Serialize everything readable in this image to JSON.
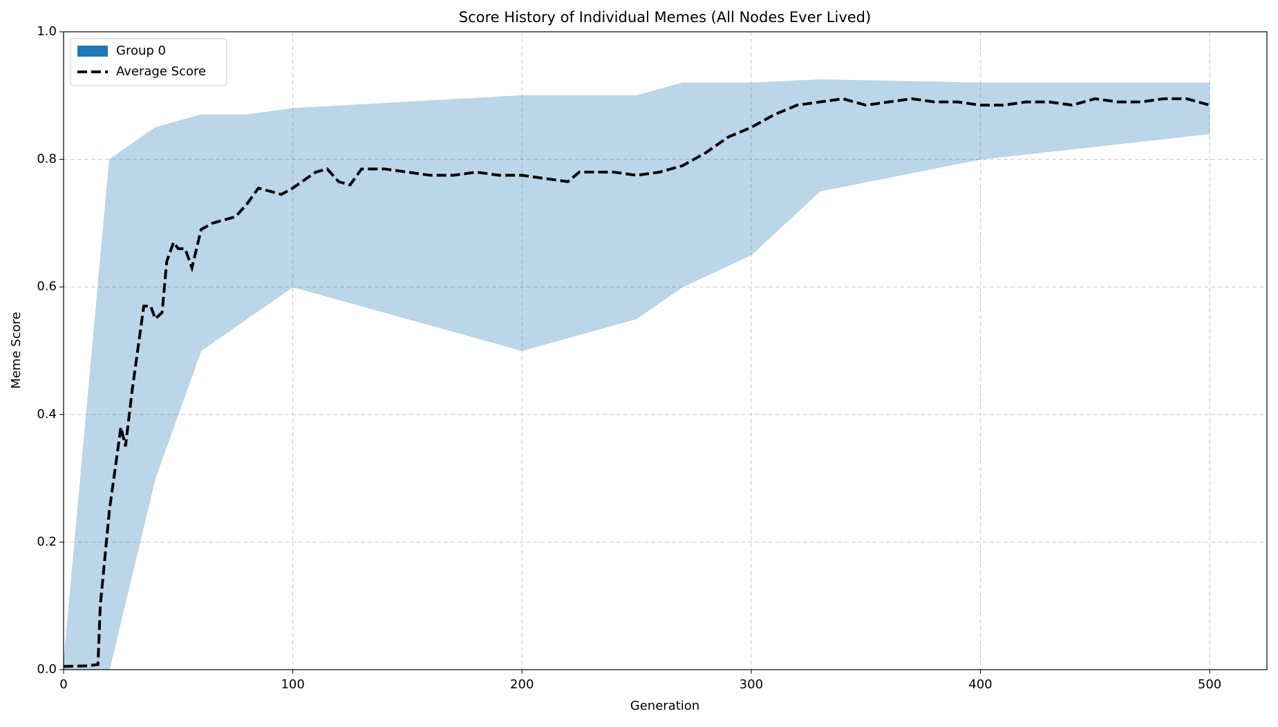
{
  "chart_data": {
    "type": "line",
    "title": "Score History of Individual Memes (All Nodes Ever Lived)",
    "x_label": "Generation",
    "y_label": "Meme Score",
    "xlim": [
      0,
      525
    ],
    "ylim": [
      0,
      1
    ],
    "xticks": [
      0,
      100,
      200,
      300,
      400,
      500
    ],
    "yticks": [
      {
        "value": 0,
        "label": "0.0"
      },
      {
        "value": 0.2,
        "label": "0.2"
      },
      {
        "value": 0.4,
        "label": "0.4"
      },
      {
        "value": 0.6,
        "label": "0.6"
      },
      {
        "value": 0.8,
        "label": "0.8"
      },
      {
        "value": 1,
        "label": "1.0"
      }
    ],
    "grid": true,
    "legend": "upper left",
    "series": [
      {
        "name": "Group 0",
        "color": "#1f77b4",
        "style": "band",
        "x": [
          0,
          20,
          40,
          60,
          80,
          100,
          150,
          200,
          250,
          270,
          300,
          330,
          400,
          500
        ],
        "lower": [
          0,
          0,
          0.3,
          0.5,
          0.55,
          0.6,
          0.55,
          0.5,
          0.55,
          0.6,
          0.65,
          0.75,
          0.8,
          0.84
        ],
        "upper": [
          0.01,
          0.8,
          0.85,
          0.87,
          0.87,
          0.88,
          0.89,
          0.9,
          0.9,
          0.92,
          0.92,
          0.925,
          0.92,
          0.92
        ]
      },
      {
        "name": "Average Score",
        "color": "#000000",
        "style": "dashed",
        "x": [
          0,
          10,
          15,
          16,
          20,
          25,
          27,
          30,
          35,
          38,
          40,
          43,
          45,
          48,
          50,
          53,
          56,
          60,
          65,
          70,
          75,
          80,
          85,
          90,
          95,
          100,
          110,
          115,
          120,
          125,
          130,
          140,
          150,
          160,
          170,
          180,
          190,
          200,
          210,
          220,
          225,
          240,
          250,
          260,
          270,
          280,
          290,
          300,
          310,
          320,
          330,
          340,
          350,
          360,
          370,
          380,
          390,
          400,
          410,
          420,
          430,
          440,
          450,
          460,
          470,
          480,
          490,
          500
        ],
        "values": [
          0.005,
          0.006,
          0.008,
          0.1,
          0.25,
          0.38,
          0.35,
          0.44,
          0.57,
          0.57,
          0.55,
          0.56,
          0.64,
          0.67,
          0.66,
          0.66,
          0.63,
          0.69,
          0.7,
          0.705,
          0.71,
          0.73,
          0.755,
          0.75,
          0.745,
          0.755,
          0.78,
          0.785,
          0.765,
          0.76,
          0.785,
          0.785,
          0.78,
          0.775,
          0.775,
          0.78,
          0.775,
          0.775,
          0.77,
          0.765,
          0.78,
          0.78,
          0.775,
          0.78,
          0.79,
          0.81,
          0.835,
          0.85,
          0.87,
          0.885,
          0.89,
          0.895,
          0.885,
          0.89,
          0.895,
          0.89,
          0.89,
          0.885,
          0.885,
          0.89,
          0.89,
          0.885,
          0.895,
          0.89,
          0.89,
          0.895,
          0.895,
          0.885
        ]
      }
    ]
  }
}
